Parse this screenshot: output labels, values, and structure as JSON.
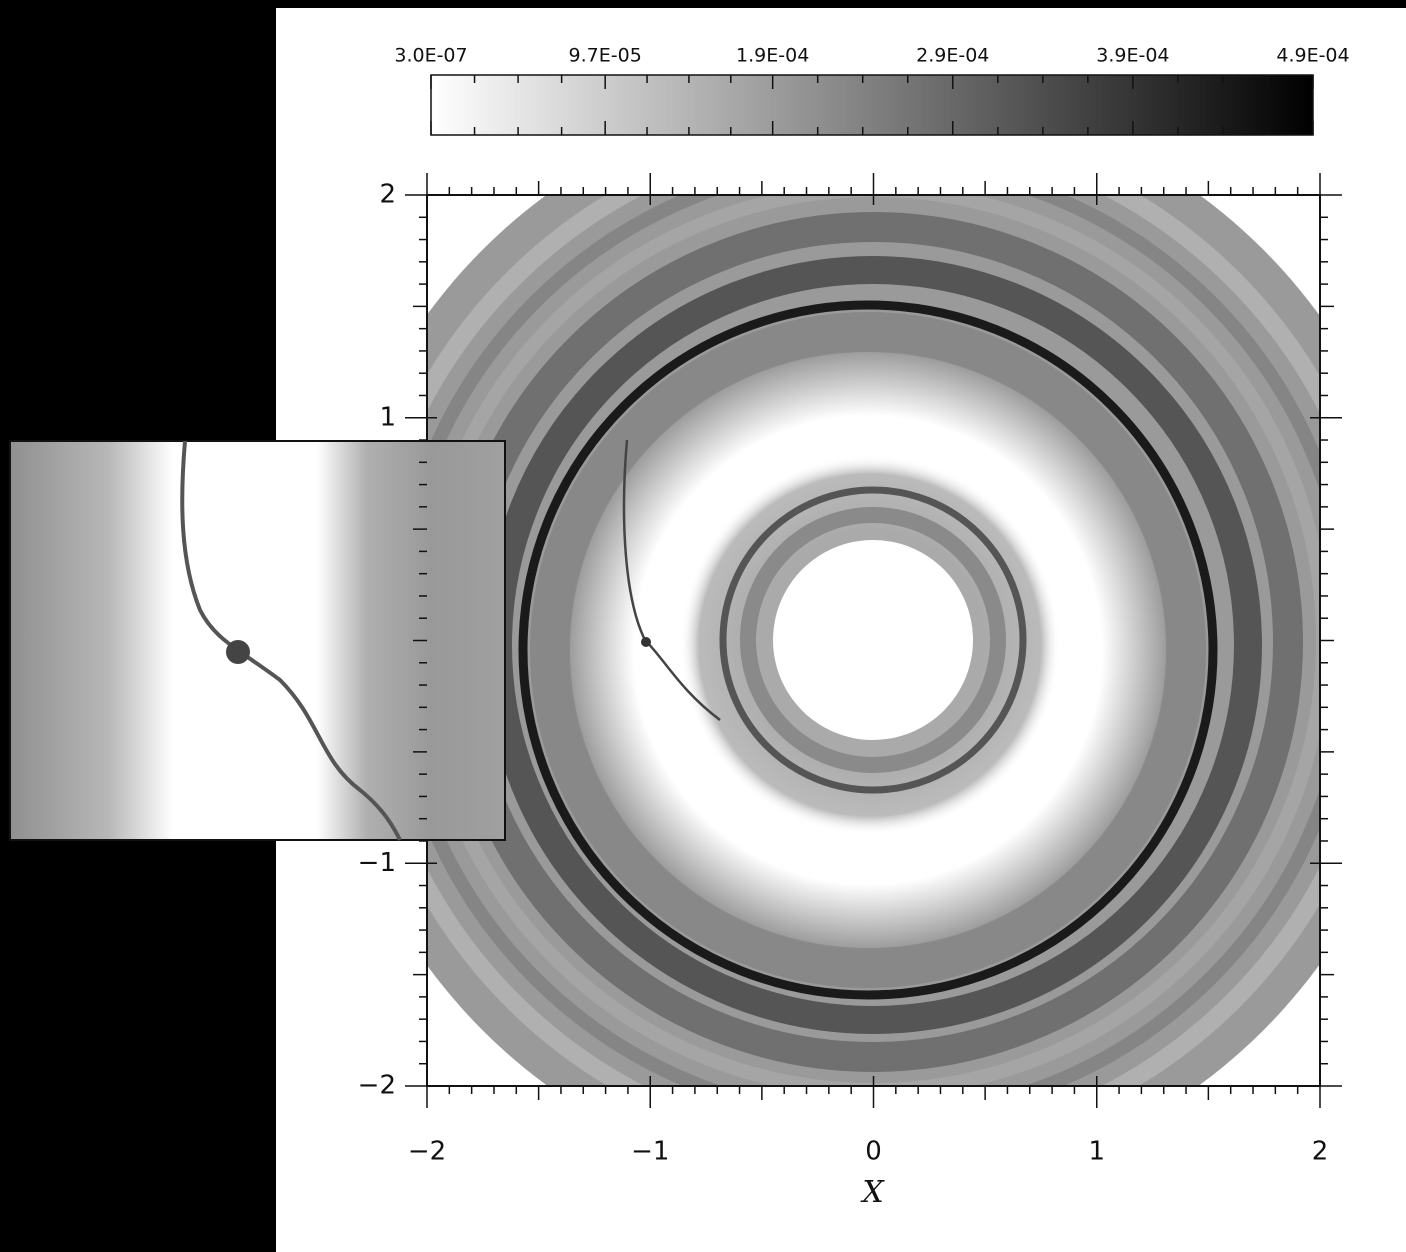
{
  "chart_data": {
    "type": "heatmap",
    "xlabel": "X",
    "xlim": [
      -2,
      2
    ],
    "ylim": [
      -2,
      2
    ],
    "xticks": [
      {
        "value": -2,
        "label": "−2"
      },
      {
        "value": -1,
        "label": "−1"
      },
      0,
      1,
      2
    ],
    "yticks": [
      2,
      1,
      {
        "value": -1,
        "label": "−1"
      },
      {
        "value": -2,
        "label": "−2"
      }
    ],
    "colorbar": {
      "clim": [
        3e-07,
        0.00049
      ],
      "ticks": [
        {
          "value": 3e-07,
          "label": "3.0E-07"
        },
        {
          "value": 9.7e-05,
          "label": "9.7E-05"
        },
        {
          "value": 0.00019,
          "label": "1.9E-04"
        },
        {
          "value": 0.00029,
          "label": "2.9E-04"
        },
        {
          "value": 0.00039,
          "label": "3.9E-04"
        },
        {
          "value": 0.00049,
          "label": "4.9E-04"
        }
      ]
    }
  }
}
